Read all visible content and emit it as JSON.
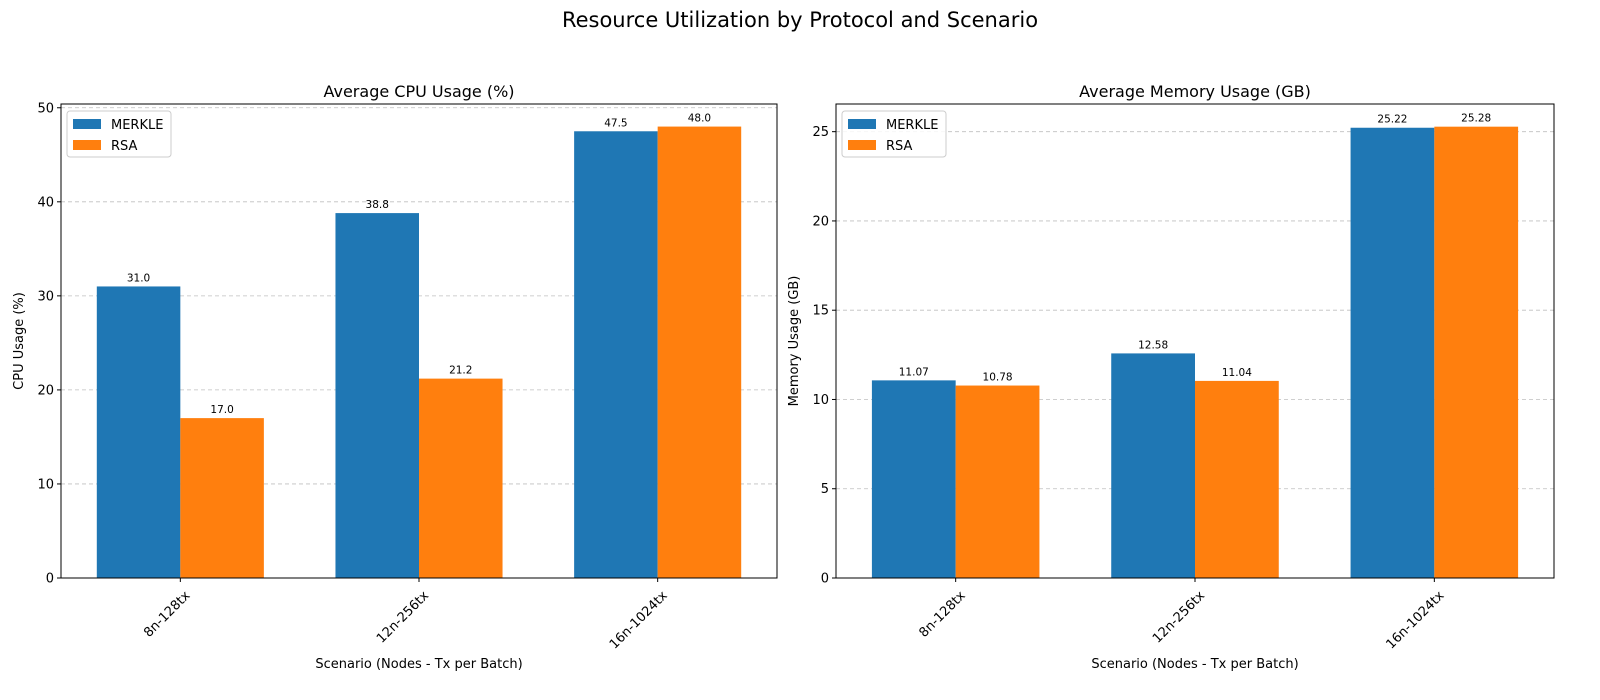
{
  "figure": {
    "title": "Resource Utilization by Protocol and Scenario"
  },
  "chart_data": [
    {
      "type": "bar",
      "title": "Average CPU Usage (%)",
      "xlabel": "Scenario (Nodes - Tx per Batch)",
      "ylabel": "CPU Usage (%)",
      "categories": [
        "8n-128tx",
        "12n-256tx",
        "16n-1024tx"
      ],
      "ylim": [
        0,
        50.4
      ],
      "yticks": [
        0,
        10,
        20,
        30,
        40,
        50
      ],
      "grid": "y-dashed",
      "legend": "top-left",
      "series": [
        {
          "name": "MERKLE",
          "color": "#1f77b4",
          "values": [
            31.0,
            38.8,
            47.5
          ],
          "labels": [
            "31.0",
            "38.8",
            "47.5"
          ]
        },
        {
          "name": "RSA",
          "color": "#ff7f0e",
          "values": [
            17.0,
            21.2,
            48.0
          ],
          "labels": [
            "17.0",
            "21.2",
            "48.0"
          ]
        }
      ]
    },
    {
      "type": "bar",
      "title": "Average Memory Usage (GB)",
      "xlabel": "Scenario (Nodes - Tx per Batch)",
      "ylabel": "Memory Usage (GB)",
      "categories": [
        "8n-128tx",
        "12n-256tx",
        "16n-1024tx"
      ],
      "ylim": [
        0,
        26.55
      ],
      "yticks": [
        0,
        5,
        10,
        15,
        20,
        25
      ],
      "grid": "y-dashed",
      "legend": "top-left",
      "series": [
        {
          "name": "MERKLE",
          "color": "#1f77b4",
          "values": [
            11.07,
            12.58,
            25.22
          ],
          "labels": [
            "11.07",
            "12.58",
            "25.22"
          ]
        },
        {
          "name": "RSA",
          "color": "#ff7f0e",
          "values": [
            10.78,
            11.04,
            25.28
          ],
          "labels": [
            "10.78",
            "11.04",
            "25.28"
          ]
        }
      ]
    }
  ]
}
